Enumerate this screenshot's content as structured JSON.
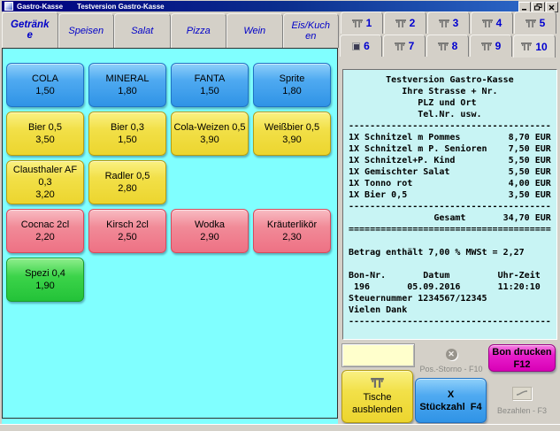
{
  "window": {
    "app_title": "Gastro-Kasse",
    "doc_title": "Testversion Gastro-Kasse"
  },
  "icons": {
    "table": "table-glyph",
    "occupied_table": "filled-square",
    "cancel": "✕",
    "minimize": "_",
    "restore": "❐",
    "close": "✕",
    "pay": "pen-stroke"
  },
  "category_tabs": [
    {
      "label": "Getränke",
      "active": true
    },
    {
      "label": "Speisen",
      "active": false
    },
    {
      "label": "Salat",
      "active": false
    },
    {
      "label": "Pizza",
      "active": false
    },
    {
      "label": "Wein",
      "active": false
    },
    {
      "label": "Eis/Kuchen",
      "active": false
    }
  ],
  "products": [
    {
      "name": "COLA",
      "price": "1,50",
      "color": "blue",
      "row": 1,
      "col": 1
    },
    {
      "name": "MINERAL",
      "price": "1,80",
      "color": "blue",
      "row": 1,
      "col": 2
    },
    {
      "name": "FANTA",
      "price": "1,50",
      "color": "blue",
      "row": 1,
      "col": 3
    },
    {
      "name": "Sprite",
      "price": "1,80",
      "color": "blue",
      "row": 1,
      "col": 4
    },
    {
      "name": "Bier 0,5",
      "price": "3,50",
      "color": "yellow",
      "row": 2,
      "col": 1
    },
    {
      "name": "Bier 0,3",
      "price": "1,50",
      "color": "yellow",
      "row": 2,
      "col": 2
    },
    {
      "name": "Cola-Weizen 0,5",
      "price": "3,90",
      "color": "yellow",
      "row": 2,
      "col": 3
    },
    {
      "name": "Weißbier 0,5",
      "price": "3,90",
      "color": "yellow",
      "row": 2,
      "col": 4
    },
    {
      "name": "Clausthaler AF 0,3",
      "price": "3,20",
      "color": "yellow",
      "row": 3,
      "col": 1
    },
    {
      "name": "Radler 0,5",
      "price": "2,80",
      "color": "yellow",
      "row": 3,
      "col": 2
    },
    {
      "name": "Cocnac 2cl",
      "price": "2,20",
      "color": "pink",
      "row": 4,
      "col": 1
    },
    {
      "name": "Kirsch 2cl",
      "price": "2,50",
      "color": "pink",
      "row": 4,
      "col": 2
    },
    {
      "name": "Wodka",
      "price": "2,90",
      "color": "pink",
      "row": 4,
      "col": 3
    },
    {
      "name": "Kräuterlikör",
      "price": "2,30",
      "color": "pink",
      "row": 4,
      "col": 4
    },
    {
      "name": "Spezi 0,4",
      "price": "1,90",
      "color": "green",
      "row": 5,
      "col": 1
    }
  ],
  "table_tabs": [
    {
      "number": "1",
      "icon": "table",
      "active": false
    },
    {
      "number": "2",
      "icon": "table",
      "active": false
    },
    {
      "number": "3",
      "icon": "table",
      "active": false
    },
    {
      "number": "4",
      "icon": "table",
      "active": false
    },
    {
      "number": "5",
      "icon": "table",
      "active": false
    },
    {
      "number": "6",
      "icon": "occupied",
      "active": false
    },
    {
      "number": "7",
      "icon": "table",
      "active": false
    },
    {
      "number": "8",
      "icon": "table",
      "active": false
    },
    {
      "number": "9",
      "icon": "table",
      "active": false
    },
    {
      "number": "10",
      "icon": "table",
      "active": true
    }
  ],
  "receipt": {
    "width_chars": 38,
    "divider_char": "-",
    "total_divider_char": "=",
    "header_lines": [
      "Testversion Gastro-Kasse",
      "Ihre Strasse + Nr.",
      "PLZ und Ort",
      "Tel.Nr. usw."
    ],
    "items": [
      {
        "qty": "1X",
        "name": "Schnitzel m Pommes",
        "price": "8,70"
      },
      {
        "qty": "1X",
        "name": "Schnitzel m P. Senioren",
        "price": "7,50"
      },
      {
        "qty": "1X",
        "name": "Schnitzel+P. Kind",
        "price": "5,50"
      },
      {
        "qty": "1X",
        "name": "Gemischter Salat",
        "price": "5,50"
      },
      {
        "qty": "1X",
        "name": "Tonno rot",
        "price": "4,00"
      },
      {
        "qty": "1X",
        "name": "Bier 0,5",
        "price": "3,50"
      }
    ],
    "currency": "EUR",
    "total_label": "Gesamt",
    "total_price": "34,70",
    "vat_line": "Betrag enthält 7,00 % MWSt = 2,27",
    "info_headers": [
      "Bon-Nr.",
      "Datum",
      "Uhr-Zeit"
    ],
    "info_values": [
      "196",
      "05.09.2016",
      "11:20:10"
    ],
    "tax_number_line": "Steuernummer 1234567/12345",
    "thanks_line": "Vielen Dank"
  },
  "actions": {
    "pos_storno": {
      "label": "Pos.-Storno - F10",
      "enabled": false
    },
    "bon_drucken": {
      "line1": "Bon drucken",
      "line2": "F12"
    },
    "tische": {
      "line1": "Tische",
      "line2": "ausblenden"
    },
    "stueckzahl": {
      "line1": "X",
      "line2": "Stückzahl  F4"
    },
    "bezahlen": {
      "label": "Bezahlen - F3",
      "enabled": false
    }
  },
  "colors": {
    "titlebar": "#000080",
    "page_background": "#80ffff",
    "receipt_background": "#c8f4f4",
    "product_blue": "#3fa5f1",
    "product_yellow": "#f2df3e",
    "product_pink": "#f28490",
    "product_green": "#30ce3c",
    "button_magenta": "#e000c8",
    "blank_button": "#ffffcc",
    "tab_text_blue": "#0000c8"
  }
}
